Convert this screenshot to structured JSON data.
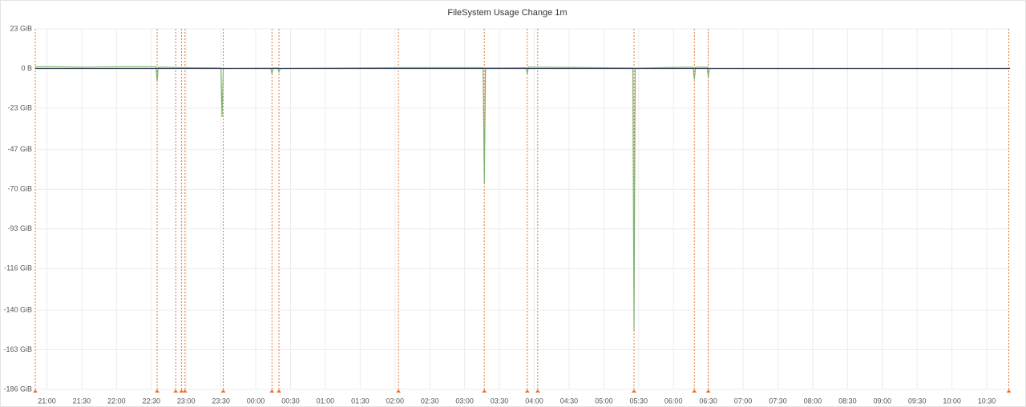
{
  "chart_data": {
    "type": "line",
    "title": "FileSystem Usage Change 1m",
    "xlim": [
      "20:50",
      "10:50"
    ],
    "xticks": [
      "21:00",
      "21:30",
      "22:00",
      "22:30",
      "23:00",
      "23:30",
      "00:00",
      "00:30",
      "01:00",
      "01:30",
      "02:00",
      "02:30",
      "03:00",
      "03:30",
      "04:00",
      "04:30",
      "05:00",
      "05:30",
      "06:00",
      "06:30",
      "07:00",
      "07:30",
      "08:00",
      "08:30",
      "09:00",
      "09:30",
      "10:00",
      "10:30"
    ],
    "ylim": [
      -186,
      23
    ],
    "yticks": [
      {
        "value": 23,
        "label": "23 GiB"
      },
      {
        "value": 0,
        "label": "0 B"
      },
      {
        "value": -23,
        "label": "-23 GiB"
      },
      {
        "value": -47,
        "label": "-47 GiB"
      },
      {
        "value": -70,
        "label": "-70 GiB"
      },
      {
        "value": -93,
        "label": "-93 GiB"
      },
      {
        "value": -116,
        "label": "-116 GiB"
      },
      {
        "value": -140,
        "label": "-140 GiB"
      },
      {
        "value": -163,
        "label": "-163 GiB"
      },
      {
        "value": -186,
        "label": "-186 GiB"
      }
    ],
    "grid": true,
    "series": [
      {
        "color": "#7eb26d",
        "x": [
          "20:50",
          "21:10",
          "21:30",
          "22:00",
          "22:20",
          "22:34",
          "22:35",
          "22:36",
          "23:00",
          "23:30",
          "23:31",
          "23:32",
          "00:05",
          "00:13",
          "00:14",
          "00:15",
          "00:19",
          "00:20",
          "00:21",
          "01:00",
          "02:00",
          "03:00",
          "03:16",
          "03:17",
          "03:18",
          "03:53",
          "03:54",
          "03:55",
          "04:30",
          "05:00",
          "05:25",
          "05:26",
          "05:27",
          "06:00",
          "06:17",
          "06:18",
          "06:19",
          "06:29",
          "06:30",
          "06:31",
          "10:50"
        ],
        "values": [
          1,
          1,
          0.8,
          1,
          1,
          1,
          -7.5,
          0.8,
          0.5,
          0.3,
          -28,
          0,
          0.2,
          0.2,
          -3,
          0.3,
          0.3,
          -2,
          0,
          0.2,
          0.5,
          0.5,
          0.5,
          -67,
          0.3,
          0.4,
          -3,
          0.8,
          0.6,
          0.4,
          0.3,
          -152,
          0.2,
          0.6,
          0.8,
          -6.5,
          0.7,
          0.8,
          -5,
          0,
          0
        ]
      },
      {
        "color": "#3f4b5a",
        "x": [
          "20:50",
          "10:50"
        ],
        "values": [
          0,
          0
        ]
      }
    ],
    "annotations": {
      "color": "#e8742e",
      "x": [
        "20:50",
        "22:35",
        "22:51",
        "22:56",
        "22:59",
        "23:32",
        "00:14",
        "00:20",
        "02:03",
        "03:17",
        "03:54",
        "04:03",
        "05:26",
        "06:18",
        "06:30",
        "10:49"
      ]
    }
  }
}
